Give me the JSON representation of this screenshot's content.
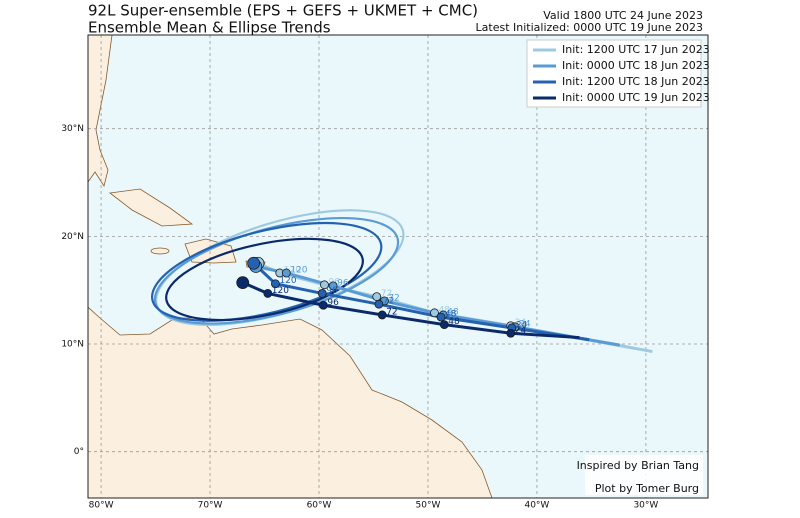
{
  "map": {
    "title": "92L Super-ensemble (EPS + GEFS + UKMET + CMC)",
    "subtitle": "Ensemble Mean & Ellipse Trends",
    "valid": "Valid 1800 UTC 24 June 2023",
    "latest": "Latest Initialized: 0000 UTC 19 June 2023",
    "credit_1": "Inspired by Brian Tang",
    "credit_2": "Plot by Tomer Burg",
    "xlim": [
      -81.2,
      -24.3
    ],
    "ylim": [
      -4.3,
      38.7
    ],
    "xticks": [
      {
        "value": -80,
        "label": "80°W"
      },
      {
        "value": -70,
        "label": "70°W"
      },
      {
        "value": -60,
        "label": "60°W"
      },
      {
        "value": -50,
        "label": "50°W"
      },
      {
        "value": -40,
        "label": "40°W"
      },
      {
        "value": -30,
        "label": "30°W"
      }
    ],
    "yticks": [
      {
        "value": 0,
        "label": "0°"
      },
      {
        "value": 10,
        "label": "10°N"
      },
      {
        "value": 20,
        "label": "20°N"
      },
      {
        "value": 30,
        "label": "30°N"
      }
    ],
    "grid": true,
    "tracks": [
      {
        "name": "Init: 1200 UTC 17 Jun 2023",
        "color": "#9ecae1",
        "lon": [
          -29.4,
          -42.4,
          -49.4,
          -54.7,
          -59.5,
          -63.6,
          -65.6
        ],
        "lat": [
          9.3,
          11.7,
          12.9,
          14.4,
          15.5,
          16.6,
          17.5
        ],
        "labels": [
          null,
          24,
          48,
          72,
          96,
          120,
          null
        ],
        "ellipse": {
          "center": [
            -63.6,
            17.1
          ],
          "rx": 11.8,
          "ry": 4.2,
          "angle": -17
        }
      },
      {
        "name": "Init: 0000 UTC 18 Jun 2023",
        "color": "#5a9bd5",
        "lon": [
          -32.4,
          -42.0,
          -48.6,
          -54.0,
          -58.7,
          -63.0,
          -65.8
        ],
        "lat": [
          9.9,
          11.6,
          12.7,
          14.0,
          15.4,
          16.6,
          17.2
        ],
        "labels": [
          null,
          24,
          48,
          72,
          96,
          120,
          null
        ],
        "ellipse": {
          "center": [
            -63.9,
            16.8
          ],
          "rx": 11.5,
          "ry": 4.0,
          "angle": -15
        }
      },
      {
        "name": "Init: 1200 UTC 18 Jun 2023",
        "color": "#2462b0",
        "lon": [
          -35.2,
          -42.3,
          -48.8,
          -54.5,
          -59.7,
          -64.0,
          -66.0
        ],
        "lat": [
          10.4,
          11.5,
          12.5,
          13.7,
          14.7,
          15.6,
          17.5
        ],
        "labels": [
          null,
          24,
          48,
          72,
          96,
          120,
          null
        ],
        "ellipse": {
          "center": [
            -64.8,
            16.7
          ],
          "rx": 10.8,
          "ry": 3.8,
          "angle": -14
        }
      },
      {
        "name": "Init: 0000 UTC 19 Jun 2023",
        "color": "#0b2a6b",
        "lon": [
          -36.1,
          -42.4,
          -48.5,
          -54.2,
          -59.6,
          -64.7,
          -67.0
        ],
        "lat": [
          10.6,
          11.0,
          11.8,
          12.7,
          13.6,
          14.7,
          15.7
        ],
        "labels": [
          null,
          24,
          48,
          72,
          96,
          120,
          null
        ],
        "ellipse": {
          "center": [
            -65.0,
            16.0
          ],
          "rx": 9.2,
          "ry": 3.3,
          "angle": -12
        }
      }
    ]
  }
}
